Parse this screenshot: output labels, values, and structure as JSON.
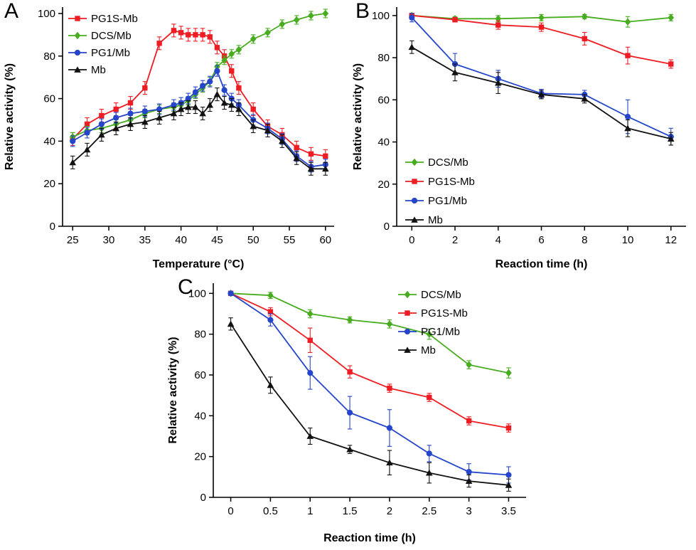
{
  "figure": {
    "panels": [
      {
        "label": "A"
      },
      {
        "label": "B"
      },
      {
        "label": "C"
      }
    ]
  },
  "palette": {
    "red": "#ee1c23",
    "green": "#47ad1f",
    "blue": "#2545cb",
    "black": "#111111",
    "axis": "#000000",
    "background": "#ffffff"
  },
  "chart_data": [
    {
      "id": "A",
      "type": "line",
      "title": "",
      "xlabel": "Temperature (°C)",
      "ylabel": "Relative activity (%)",
      "xlim": [
        23.6,
        61.2
      ],
      "ylim": [
        0,
        103
      ],
      "xticks": [
        25,
        30,
        35,
        40,
        45,
        50,
        55,
        60
      ],
      "yticks": [
        0,
        20,
        40,
        60,
        80,
        100
      ],
      "grid": false,
      "legend_position": "top-left",
      "x": [
        25,
        27,
        29,
        31,
        33,
        35,
        37,
        39,
        40,
        41,
        42,
        43,
        44,
        45,
        46,
        47,
        48,
        50,
        52,
        54,
        56,
        58,
        60
      ],
      "series": [
        {
          "name": "PG1S-Mb",
          "marker": "square",
          "color": "#ee1c23",
          "err": 3,
          "values": [
            41,
            48,
            52,
            55,
            58,
            65,
            86,
            92,
            91,
            90,
            90,
            90,
            89,
            84,
            80,
            73,
            65,
            55,
            47,
            43,
            37,
            34,
            33
          ]
        },
        {
          "name": "DCS/Mb",
          "marker": "diamond",
          "color": "#47ad1f",
          "err": 2,
          "values": [
            42,
            45,
            46,
            48,
            50,
            53,
            55,
            56,
            57,
            59,
            62,
            65,
            68,
            75,
            78,
            81,
            83,
            88,
            91,
            95,
            97,
            99,
            100
          ]
        },
        {
          "name": "PG1/Mb",
          "marker": "circle",
          "color": "#2545cb",
          "err": 2.5,
          "values": [
            40,
            44,
            48,
            51,
            53,
            54,
            55,
            57,
            58,
            60,
            63,
            66,
            68,
            73,
            64,
            60,
            57,
            50,
            46,
            41,
            33,
            28,
            29
          ]
        },
        {
          "name": "Mb",
          "marker": "triangle",
          "color": "#111111",
          "err": 3,
          "values": [
            30,
            36,
            43,
            46,
            48,
            49,
            51,
            53,
            55,
            56,
            56,
            53,
            57,
            62,
            58,
            57,
            55,
            47,
            45,
            40,
            32,
            27,
            27
          ]
        }
      ]
    },
    {
      "id": "B",
      "type": "line",
      "title": "",
      "xlabel": "Reaction time (h)",
      "ylabel": "Relative activity (%)",
      "xlim": [
        -0.7,
        12.7
      ],
      "ylim": [
        0,
        104
      ],
      "xticks": [
        0,
        2,
        4,
        6,
        8,
        10,
        12
      ],
      "yticks": [
        0,
        20,
        40,
        60,
        80,
        100
      ],
      "grid": false,
      "legend_position": "left-middle",
      "x": [
        0,
        2,
        4,
        6,
        8,
        10,
        12
      ],
      "series": [
        {
          "name": "DCS/Mb",
          "marker": "diamond",
          "color": "#47ad1f",
          "err": [
            1,
            1,
            1.5,
            1.5,
            1,
            2.5,
            1.5
          ],
          "values": [
            100,
            98.5,
            98.5,
            99,
            99.5,
            97,
            99
          ]
        },
        {
          "name": "PG1S-Mb",
          "marker": "square",
          "color": "#ee1c23",
          "err": [
            1,
            1,
            2,
            2,
            3,
            4,
            2
          ],
          "values": [
            100,
            98,
            95.5,
            94.5,
            89,
            81,
            77
          ]
        },
        {
          "name": "PG1/Mb",
          "marker": "circle",
          "color": "#2545cb",
          "err": [
            2,
            5,
            4,
            2,
            2,
            8,
            4
          ],
          "values": [
            99,
            77,
            70,
            63,
            62.5,
            52,
            42.5
          ]
        },
        {
          "name": "Mb",
          "marker": "triangle",
          "color": "#111111",
          "err": [
            3,
            4,
            5,
            2,
            2,
            4,
            3
          ],
          "values": [
            85,
            73,
            68,
            62.5,
            60.5,
            46.5,
            41.5
          ]
        }
      ]
    },
    {
      "id": "C",
      "type": "line",
      "title": "",
      "xlabel": "Reaction time (h)",
      "ylabel": "Relative activity (%)",
      "xlim": [
        -0.22,
        3.72
      ],
      "ylim": [
        0,
        105
      ],
      "xticks": [
        0,
        0.5,
        1,
        1.5,
        2,
        2.5,
        3,
        3.5
      ],
      "yticks": [
        0,
        20,
        40,
        60,
        80,
        100
      ],
      "grid": false,
      "legend_position": "top-right",
      "x": [
        0,
        0.5,
        1,
        1.5,
        2,
        2.5,
        3,
        3.5
      ],
      "series": [
        {
          "name": "DCS/Mb",
          "marker": "diamond",
          "color": "#47ad1f",
          "err": [
            1,
            1.5,
            2,
            1.5,
            2,
            2.5,
            2,
            2.5
          ],
          "values": [
            100,
            99,
            90,
            87,
            85,
            80,
            65,
            61
          ]
        },
        {
          "name": "PG1S-Mb",
          "marker": "square",
          "color": "#ee1c23",
          "err": [
            1,
            2,
            6,
            3,
            2,
            2,
            2,
            2
          ],
          "values": [
            100,
            91,
            77,
            61.5,
            53.5,
            49,
            37.5,
            34
          ]
        },
        {
          "name": "PG1/Mb",
          "marker": "circle",
          "color": "#2545cb",
          "err": [
            1,
            3,
            8,
            8,
            9,
            4,
            4,
            4
          ],
          "values": [
            100,
            87,
            61,
            41.5,
            34,
            21.5,
            12.5,
            11
          ]
        },
        {
          "name": "Mb",
          "marker": "triangle",
          "color": "#111111",
          "err": [
            3,
            4,
            4,
            2,
            6,
            5,
            3,
            3
          ],
          "values": [
            85,
            55,
            30,
            23.5,
            17,
            12,
            8,
            6
          ]
        }
      ]
    }
  ]
}
